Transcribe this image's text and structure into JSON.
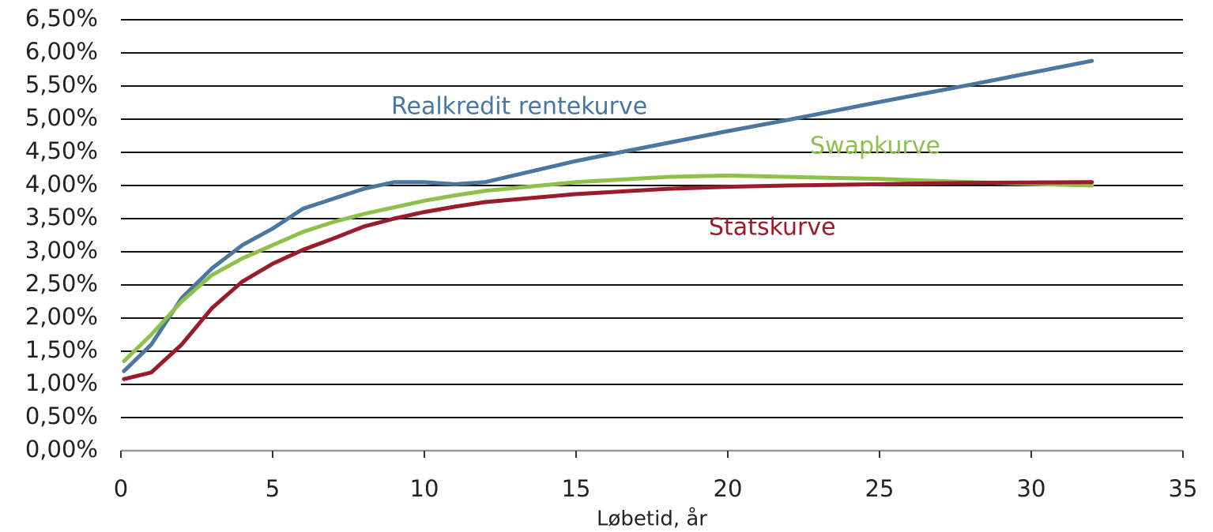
{
  "chart_data": {
    "type": "line",
    "xlabel": "Løbetid, år",
    "x": [
      0.1,
      1,
      2,
      3,
      4,
      5,
      6,
      7,
      8,
      9,
      10,
      11,
      12,
      15,
      18,
      20,
      22,
      25,
      28,
      32
    ],
    "series": [
      {
        "name": "Realkredit rentekurve",
        "color": "#4a77a0",
        "values": [
          1.2,
          1.6,
          2.3,
          2.75,
          3.1,
          3.35,
          3.65,
          3.8,
          3.95,
          4.05,
          4.05,
          4.02,
          4.05,
          4.37,
          4.64,
          4.82,
          4.99,
          5.26,
          5.52,
          5.88
        ]
      },
      {
        "name": "Swapkurve",
        "color": "#8fc04a",
        "values": [
          1.35,
          1.75,
          2.25,
          2.65,
          2.9,
          3.1,
          3.3,
          3.45,
          3.57,
          3.67,
          3.77,
          3.85,
          3.92,
          4.05,
          4.13,
          4.15,
          4.13,
          4.1,
          4.05,
          4.0
        ]
      },
      {
        "name": "Statskurve",
        "color": "#9a1b2a",
        "values": [
          1.08,
          1.18,
          1.6,
          2.15,
          2.55,
          2.82,
          3.03,
          3.2,
          3.38,
          3.5,
          3.6,
          3.68,
          3.75,
          3.87,
          3.95,
          3.98,
          4.0,
          4.02,
          4.04,
          4.05
        ]
      }
    ],
    "xlim": [
      0,
      35
    ],
    "xticks": [
      0,
      5,
      10,
      15,
      20,
      25,
      30,
      35
    ],
    "ylim": [
      0,
      6.5
    ],
    "yticks": [
      {
        "value": 0,
        "label": "0,00%"
      },
      {
        "value": 0.5,
        "label": "0,50%"
      },
      {
        "value": 1,
        "label": "1,00%"
      },
      {
        "value": 1.5,
        "label": "1,50%"
      },
      {
        "value": 2,
        "label": "2,00%"
      },
      {
        "value": 2.5,
        "label": "2,50%"
      },
      {
        "value": 3,
        "label": "3,00%"
      },
      {
        "value": 3.5,
        "label": "3,50%"
      },
      {
        "value": 4,
        "label": "4,00%"
      },
      {
        "value": 4.5,
        "label": "4,50%"
      },
      {
        "value": 5,
        "label": "5,00%"
      },
      {
        "value": 5.5,
        "label": "5,50%"
      },
      {
        "value": 6,
        "label": "6,00%"
      },
      {
        "value": 6.5,
        "label": "6,50%"
      }
    ],
    "grid": true
  }
}
